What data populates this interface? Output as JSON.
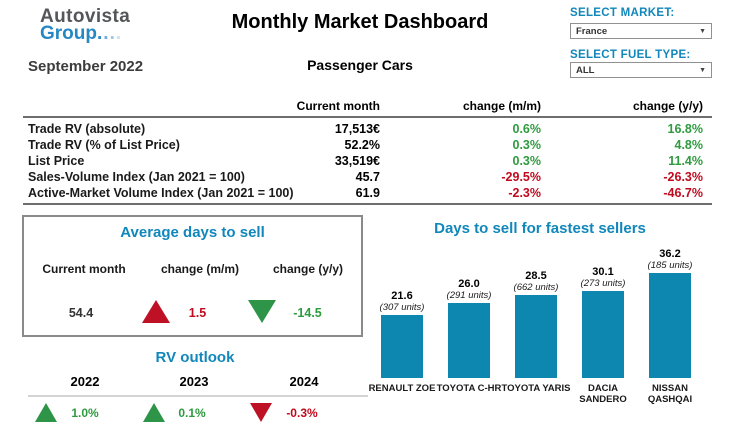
{
  "header": {
    "logo_line1": "Autovista",
    "logo_line2": "Group",
    "title": "Monthly Market Dashboard",
    "period": "September 2022",
    "segment": "Passenger Cars",
    "controls": {
      "market_label": "SELECT MARKET:",
      "market_value": "France",
      "fuel_label": "SELECT FUEL TYPE:",
      "fuel_value": "ALL"
    }
  },
  "kpi_table": {
    "columns": [
      "Current month",
      "change (m/m)",
      "change (y/y)"
    ],
    "rows": [
      {
        "label": "Trade RV (absolute)",
        "current": "17,513€",
        "mm": "0.6%",
        "yy": "16.8%"
      },
      {
        "label": "Trade RV (% of List Price)",
        "current": "52.2%",
        "mm": "0.3%",
        "yy": "4.8%"
      },
      {
        "label": "List Price",
        "current": "33,519€",
        "mm": "0.3%",
        "yy": "11.4%"
      },
      {
        "label": "Sales-Volume Index (Jan 2021 = 100)",
        "current": "45.7",
        "mm": "-29.5%",
        "yy": "-26.3%"
      },
      {
        "label": "Active-Market Volume Index (Jan 2021 = 100)",
        "current": "61.9",
        "mm": "-2.3%",
        "yy": "-46.7%"
      }
    ]
  },
  "days_to_sell": {
    "title": "Average days to sell",
    "columns": [
      "Current month",
      "change (m/m)",
      "change (y/y)"
    ],
    "current": "54.4",
    "mm": {
      "value": "1.5",
      "direction": "up",
      "color": "red"
    },
    "yy": {
      "value": "-14.5",
      "direction": "down",
      "color": "green"
    }
  },
  "rv_outlook": {
    "title": "RV outlook",
    "items": [
      {
        "year": "2022",
        "value": "1.0%",
        "direction": "up",
        "color": "green"
      },
      {
        "year": "2023",
        "value": "0.1%",
        "direction": "up",
        "color": "green"
      },
      {
        "year": "2024",
        "value": "-0.3%",
        "direction": "down",
        "color": "red"
      }
    ]
  },
  "chart_data": {
    "type": "bar",
    "title": "Days to sell for fastest sellers",
    "categories": [
      "RENAULT ZOE",
      "TOYOTA C-HR",
      "TOYOTA YARIS",
      "DACIA SANDERO",
      "NISSAN QASHQAI"
    ],
    "values": [
      21.6,
      26.0,
      28.5,
      30.1,
      36.2
    ],
    "units_sold": [
      307,
      291,
      662,
      273,
      185
    ],
    "value_labels": [
      "21.6",
      "26.0",
      "28.5",
      "30.1",
      "36.2"
    ],
    "unit_labels": [
      "(307 units)",
      "(291 units)",
      "(662 units)",
      "(273 units)",
      "(185 units)"
    ],
    "label_lines": [
      [
        "RENAULT ZOE",
        ""
      ],
      [
        "TOYOTA C-HR",
        ""
      ],
      [
        "TOYOTA YARIS",
        ""
      ],
      [
        "DACIA",
        "SANDERO"
      ],
      [
        "NISSAN",
        "QASHQAI"
      ]
    ],
    "ylim": [
      0,
      40
    ],
    "grid": false,
    "legend": false,
    "bar_color": "#0E87B0"
  },
  "colors": {
    "heading_blue": "#1187BB",
    "positive_green": "#2E9B3F",
    "negative_red": "#C00A1E",
    "triangle_green": "#2E9447",
    "triangle_red": "#BE1126",
    "bar_teal": "#0E87B0",
    "logo_blue": "#2787C4",
    "logo_gray": "#55565A"
  }
}
